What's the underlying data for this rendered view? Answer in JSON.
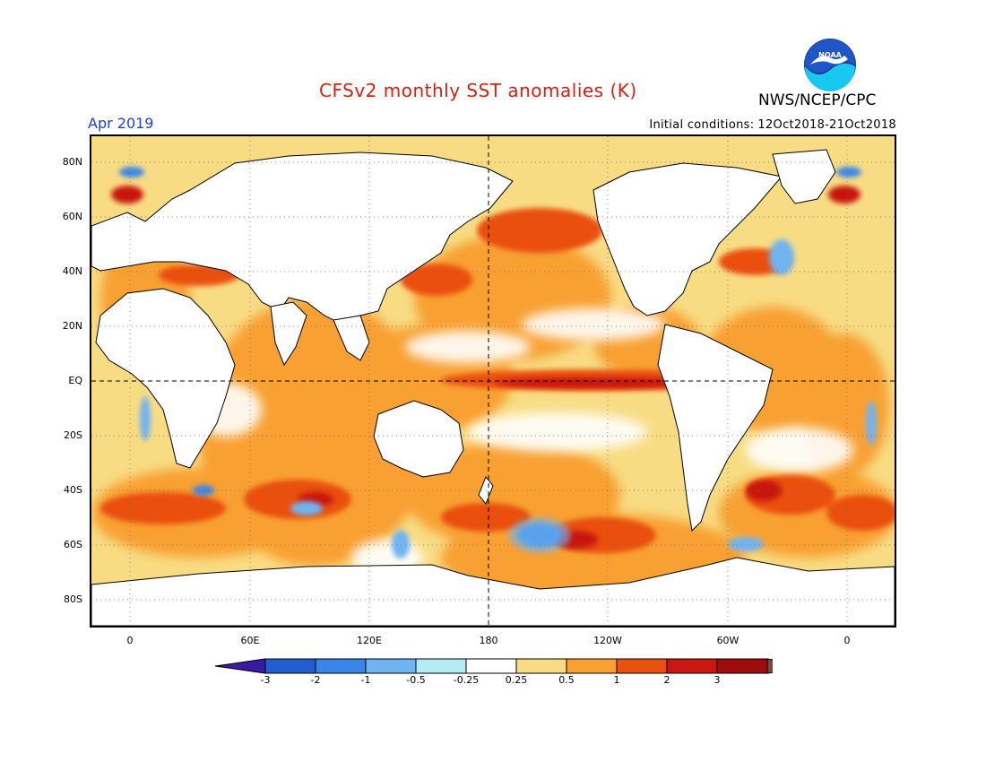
{
  "header": {
    "title": "CFSv2 monthly SST anomalies (K)",
    "agency": "NWS/NCEP/CPC",
    "logo_text": "NOAA",
    "target_month": "Apr 2019",
    "initial_conditions_label": "Initial conditions:",
    "initial_conditions_value": "12Oct2018-21Oct2018"
  },
  "axes": {
    "lat_labels": [
      "80N",
      "60N",
      "40N",
      "20N",
      "EQ",
      "20S",
      "40S",
      "60S",
      "80S"
    ],
    "lon_labels": [
      "0",
      "60E",
      "120E",
      "180",
      "120W",
      "60W",
      "0"
    ]
  },
  "colorbar": {
    "labels": [
      "-3",
      "-2",
      "-1",
      "-0.5",
      "-0.25",
      "0.25",
      "0.5",
      "1",
      "2",
      "3"
    ],
    "colors": [
      "#3a1aa0",
      "#1f5fd0",
      "#3a86e8",
      "#6fb4f0",
      "#b4ecf4",
      "#ffffff",
      "#f8dc84",
      "#f8a030",
      "#ea5010",
      "#c81810",
      "#a00c0c",
      "#7a4a38"
    ]
  },
  "map": {
    "projection": "cylindrical equidistant",
    "grid": "dotted",
    "reference_lines": [
      "equator",
      "180"
    ]
  }
}
